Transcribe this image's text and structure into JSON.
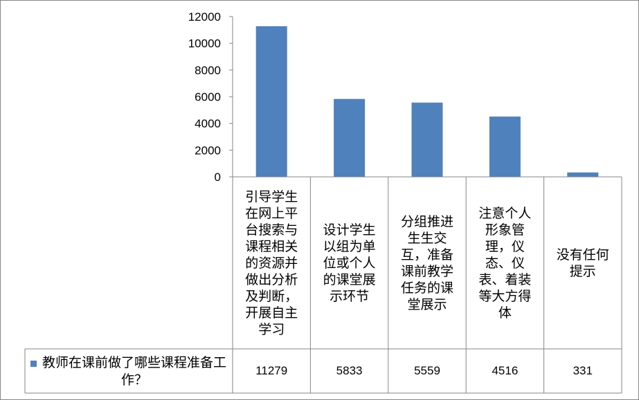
{
  "chart_data": {
    "type": "bar",
    "categories": [
      "引导学生在网上平台搜索与课程相关的资源并做出分析及判断，开展自主学习",
      "设计学生以组为单位或个人的课堂展示环节",
      "分组推进生生交互，准备课前教学任务的课堂展示",
      "注意个人形象管理，仪态、仪表、着装等大方得体",
      "没有任何提示"
    ],
    "series": [
      {
        "name": "教师在课前做了哪些课程准备工作？",
        "values": [
          11279,
          5833,
          5559,
          4516,
          331
        ],
        "color": "#4f81bd"
      }
    ],
    "ylim": [
      0,
      12000
    ],
    "yticks": [
      0,
      2000,
      4000,
      6000,
      8000,
      10000,
      12000
    ],
    "data_table": true,
    "legend": "data-table-left",
    "grid": false
  },
  "table_values": [
    "11279",
    "5833",
    "5559",
    "4516",
    "331"
  ],
  "tick_labels": [
    "0",
    "2000",
    "4000",
    "6000",
    "8000",
    "10000",
    "12000"
  ]
}
